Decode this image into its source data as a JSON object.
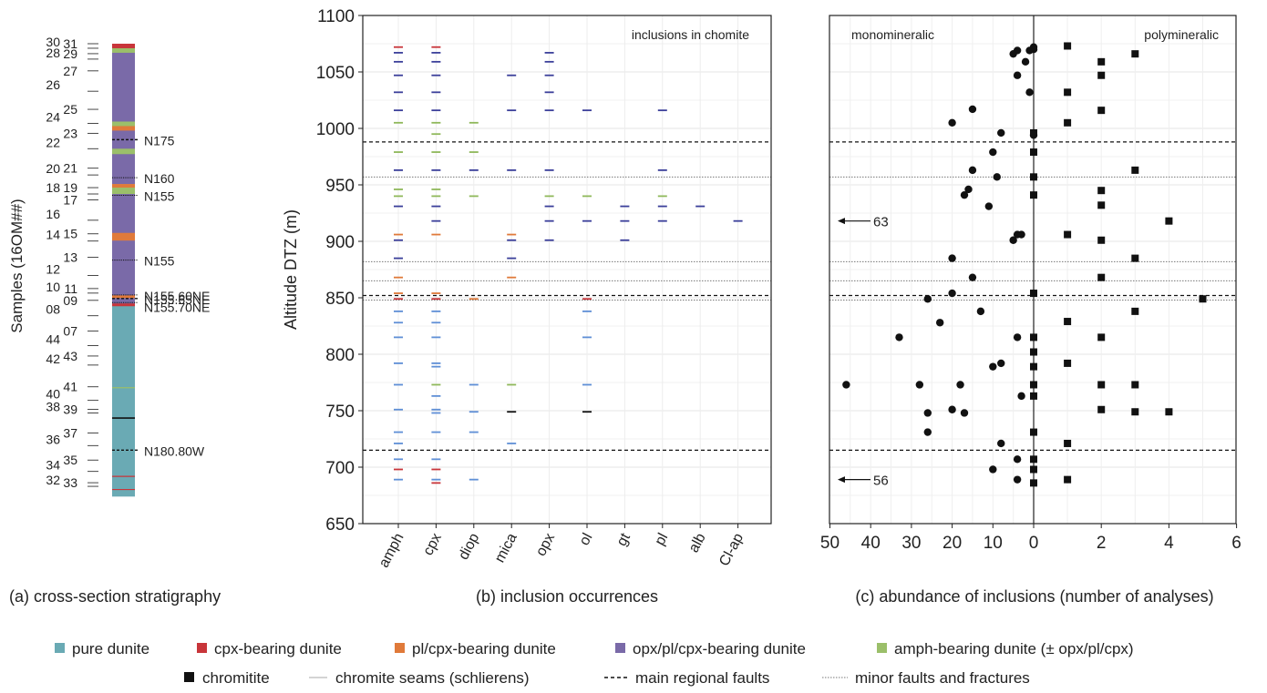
{
  "panels": {
    "a": {
      "caption": "(a) cross-section stratigraphy",
      "ylabel": "Samples (16OM##)",
      "sample_labels": [
        "31",
        "30",
        "29",
        "28",
        "27",
        "26",
        "25",
        "24",
        "23",
        "22",
        "21",
        "20",
        "19",
        "18",
        "17",
        "16",
        "15",
        "14",
        "13",
        "12",
        "11",
        "10",
        "09",
        "08",
        "07",
        "44",
        "43",
        "42",
        "41",
        "40",
        "39",
        "38",
        "37",
        "36",
        "35",
        "34",
        "33",
        "32"
      ],
      "fault_labels": [
        "N175",
        "N160",
        "N155",
        "N155",
        "N155.60NE",
        "N155.65NE",
        "N155.70NE",
        "N180.80W"
      ]
    },
    "b": {
      "caption": "(b) inclusion occurrences",
      "title": "inclusions in chomite",
      "ylabel": "Altitude DTZ (m)"
    },
    "c": {
      "caption": "(c) abundance of inclusions (number of analyses)",
      "left_title": "monomineralic",
      "right_title": "polymineralic",
      "arrow_labels": [
        "63",
        "56"
      ]
    }
  },
  "legend": {
    "items": [
      {
        "label": "pure dunite",
        "color": "#6aaab4"
      },
      {
        "label": "cpx-bearing dunite",
        "color": "#c8353a"
      },
      {
        "label": "pl/cpx-bearing dunite",
        "color": "#e07a3a"
      },
      {
        "label": "opx/pl/cpx-bearing dunite",
        "color": "#7a6aa8"
      },
      {
        "label": "amph-bearing dunite (± opx/pl/cpx)",
        "color": "#9bbf6a"
      },
      {
        "label": "chromitite",
        "color": "#111111"
      },
      {
        "label": "chromite seams (schlierens)",
        "color": "#aaaaaa"
      },
      {
        "label": "main regional faults",
        "color": "#111111"
      },
      {
        "label": "minor faults and fractures",
        "color": "#777777"
      }
    ]
  },
  "chart_data": [
    {
      "type": "scatter",
      "panel": "b",
      "title": "inclusions in chomite",
      "xlabel": "",
      "ylabel": "Altitude DTZ (m)",
      "categories": [
        "amph",
        "cpx",
        "diop",
        "mica",
        "opx",
        "ol",
        "gt",
        "pl",
        "alb",
        "Cl-ap"
      ],
      "ylim": [
        650,
        1100
      ],
      "yticks": [
        650,
        700,
        750,
        800,
        850,
        900,
        950,
        1000,
        1050,
        1100
      ],
      "main_faults": [
        988,
        715,
        852
      ],
      "minor_faults": [
        957,
        882,
        865,
        848
      ],
      "occurrences": [
        {
          "cat": "amph",
          "y": 1072,
          "c": "cpx"
        },
        {
          "cat": "amph",
          "y": 1067,
          "c": "opx"
        },
        {
          "cat": "amph",
          "y": 1059,
          "c": "opx"
        },
        {
          "cat": "amph",
          "y": 1047,
          "c": "opx"
        },
        {
          "cat": "amph",
          "y": 1032,
          "c": "opx"
        },
        {
          "cat": "amph",
          "y": 1016,
          "c": "opx"
        },
        {
          "cat": "amph",
          "y": 1005,
          "c": "amph"
        },
        {
          "cat": "amph",
          "y": 979,
          "c": "amph"
        },
        {
          "cat": "amph",
          "y": 963,
          "c": "opx"
        },
        {
          "cat": "amph",
          "y": 946,
          "c": "amph"
        },
        {
          "cat": "amph",
          "y": 940,
          "c": "amph"
        },
        {
          "cat": "amph",
          "y": 931,
          "c": "opx"
        },
        {
          "cat": "amph",
          "y": 906,
          "c": "pl"
        },
        {
          "cat": "amph",
          "y": 901,
          "c": "opx"
        },
        {
          "cat": "amph",
          "y": 885,
          "c": "opx"
        },
        {
          "cat": "amph",
          "y": 868,
          "c": "pl"
        },
        {
          "cat": "amph",
          "y": 854,
          "c": "pl"
        },
        {
          "cat": "amph",
          "y": 849,
          "c": "cpx"
        },
        {
          "cat": "amph",
          "y": 838,
          "c": "pure"
        },
        {
          "cat": "amph",
          "y": 828,
          "c": "pure"
        },
        {
          "cat": "amph",
          "y": 815,
          "c": "pure"
        },
        {
          "cat": "amph",
          "y": 792,
          "c": "pure"
        },
        {
          "cat": "amph",
          "y": 773,
          "c": "pure"
        },
        {
          "cat": "amph",
          "y": 751,
          "c": "pure"
        },
        {
          "cat": "amph",
          "y": 731,
          "c": "pure"
        },
        {
          "cat": "amph",
          "y": 721,
          "c": "pure"
        },
        {
          "cat": "amph",
          "y": 707,
          "c": "pure"
        },
        {
          "cat": "amph",
          "y": 698,
          "c": "cpx"
        },
        {
          "cat": "amph",
          "y": 689,
          "c": "pure"
        },
        {
          "cat": "cpx",
          "y": 1072,
          "c": "cpx"
        },
        {
          "cat": "cpx",
          "y": 1067,
          "c": "opx"
        },
        {
          "cat": "cpx",
          "y": 1059,
          "c": "opx"
        },
        {
          "cat": "cpx",
          "y": 1047,
          "c": "opx"
        },
        {
          "cat": "cpx",
          "y": 1032,
          "c": "opx"
        },
        {
          "cat": "cpx",
          "y": 1016,
          "c": "opx"
        },
        {
          "cat": "cpx",
          "y": 1005,
          "c": "amph"
        },
        {
          "cat": "cpx",
          "y": 995,
          "c": "amph"
        },
        {
          "cat": "cpx",
          "y": 979,
          "c": "amph"
        },
        {
          "cat": "cpx",
          "y": 963,
          "c": "opx"
        },
        {
          "cat": "cpx",
          "y": 946,
          "c": "amph"
        },
        {
          "cat": "cpx",
          "y": 940,
          "c": "amph"
        },
        {
          "cat": "cpx",
          "y": 931,
          "c": "opx"
        },
        {
          "cat": "cpx",
          "y": 918,
          "c": "opx"
        },
        {
          "cat": "cpx",
          "y": 906,
          "c": "pl"
        },
        {
          "cat": "cpx",
          "y": 854,
          "c": "pl"
        },
        {
          "cat": "cpx",
          "y": 849,
          "c": "cpx"
        },
        {
          "cat": "cpx",
          "y": 838,
          "c": "pure"
        },
        {
          "cat": "cpx",
          "y": 828,
          "c": "pure"
        },
        {
          "cat": "cpx",
          "y": 815,
          "c": "pure"
        },
        {
          "cat": "cpx",
          "y": 792,
          "c": "pure"
        },
        {
          "cat": "cpx",
          "y": 789,
          "c": "pure"
        },
        {
          "cat": "cpx",
          "y": 773,
          "c": "amph"
        },
        {
          "cat": "cpx",
          "y": 763,
          "c": "pure"
        },
        {
          "cat": "cpx",
          "y": 751,
          "c": "pure"
        },
        {
          "cat": "cpx",
          "y": 748,
          "c": "pure"
        },
        {
          "cat": "cpx",
          "y": 731,
          "c": "pure"
        },
        {
          "cat": "cpx",
          "y": 707,
          "c": "pure"
        },
        {
          "cat": "cpx",
          "y": 698,
          "c": "cpx"
        },
        {
          "cat": "cpx",
          "y": 689,
          "c": "pure"
        },
        {
          "cat": "cpx",
          "y": 686,
          "c": "cpx"
        },
        {
          "cat": "diop",
          "y": 1005,
          "c": "amph"
        },
        {
          "cat": "diop",
          "y": 979,
          "c": "amph"
        },
        {
          "cat": "diop",
          "y": 963,
          "c": "opx"
        },
        {
          "cat": "diop",
          "y": 940,
          "c": "amph"
        },
        {
          "cat": "diop",
          "y": 849,
          "c": "pl"
        },
        {
          "cat": "diop",
          "y": 773,
          "c": "pure"
        },
        {
          "cat": "diop",
          "y": 749,
          "c": "pure"
        },
        {
          "cat": "diop",
          "y": 731,
          "c": "pure"
        },
        {
          "cat": "diop",
          "y": 689,
          "c": "pure"
        },
        {
          "cat": "mica",
          "y": 1047,
          "c": "opx"
        },
        {
          "cat": "mica",
          "y": 1016,
          "c": "opx"
        },
        {
          "cat": "mica",
          "y": 963,
          "c": "opx"
        },
        {
          "cat": "mica",
          "y": 906,
          "c": "pl"
        },
        {
          "cat": "mica",
          "y": 901,
          "c": "opx"
        },
        {
          "cat": "mica",
          "y": 885,
          "c": "opx"
        },
        {
          "cat": "mica",
          "y": 868,
          "c": "pl"
        },
        {
          "cat": "mica",
          "y": 773,
          "c": "amph"
        },
        {
          "cat": "mica",
          "y": 749,
          "c": "chr"
        },
        {
          "cat": "mica",
          "y": 721,
          "c": "pure"
        },
        {
          "cat": "opx",
          "y": 1067,
          "c": "opx"
        },
        {
          "cat": "opx",
          "y": 1059,
          "c": "opx"
        },
        {
          "cat": "opx",
          "y": 1047,
          "c": "opx"
        },
        {
          "cat": "opx",
          "y": 1032,
          "c": "opx"
        },
        {
          "cat": "opx",
          "y": 1016,
          "c": "opx"
        },
        {
          "cat": "opx",
          "y": 963,
          "c": "opx"
        },
        {
          "cat": "opx",
          "y": 940,
          "c": "amph"
        },
        {
          "cat": "opx",
          "y": 931,
          "c": "opx"
        },
        {
          "cat": "opx",
          "y": 918,
          "c": "opx"
        },
        {
          "cat": "opx",
          "y": 901,
          "c": "opx"
        },
        {
          "cat": "ol",
          "y": 1016,
          "c": "opx"
        },
        {
          "cat": "ol",
          "y": 940,
          "c": "amph"
        },
        {
          "cat": "ol",
          "y": 918,
          "c": "opx"
        },
        {
          "cat": "ol",
          "y": 849,
          "c": "cpx"
        },
        {
          "cat": "ol",
          "y": 838,
          "c": "pure"
        },
        {
          "cat": "ol",
          "y": 815,
          "c": "pure"
        },
        {
          "cat": "ol",
          "y": 773,
          "c": "pure"
        },
        {
          "cat": "ol",
          "y": 749,
          "c": "chr"
        },
        {
          "cat": "gt",
          "y": 931,
          "c": "opx"
        },
        {
          "cat": "gt",
          "y": 918,
          "c": "opx"
        },
        {
          "cat": "gt",
          "y": 901,
          "c": "opx"
        },
        {
          "cat": "pl",
          "y": 1016,
          "c": "opx"
        },
        {
          "cat": "pl",
          "y": 963,
          "c": "opx"
        },
        {
          "cat": "pl",
          "y": 940,
          "c": "amph"
        },
        {
          "cat": "pl",
          "y": 931,
          "c": "opx"
        },
        {
          "cat": "pl",
          "y": 918,
          "c": "opx"
        },
        {
          "cat": "alb",
          "y": 931,
          "c": "opx"
        },
        {
          "cat": "Cl-ap",
          "y": 918,
          "c": "opx"
        }
      ]
    },
    {
      "type": "scatter",
      "panel": "c",
      "xlabel": "abundance of inclusions (number of analyses)",
      "ylabel": "",
      "ylim": [
        650,
        1100
      ],
      "left_xticks": [
        50,
        40,
        30,
        20,
        10,
        0
      ],
      "right_xticks": [
        0,
        2,
        4,
        6
      ],
      "series": [
        {
          "name": "monomineralic",
          "marker": "circle",
          "points": [
            [
              0,
              1072
            ],
            [
              0,
              1070
            ],
            [
              1,
              1069
            ],
            [
              4,
              1069
            ],
            [
              5,
              1066
            ],
            [
              2,
              1059
            ],
            [
              4,
              1047
            ],
            [
              1,
              1032
            ],
            [
              15,
              1017
            ],
            [
              20,
              1005
            ],
            [
              8,
              996
            ],
            [
              0,
              994
            ],
            [
              10,
              979
            ],
            [
              15,
              963
            ],
            [
              9,
              957
            ],
            [
              16,
              946
            ],
            [
              17,
              941
            ],
            [
              11,
              931
            ],
            [
              3,
              906
            ],
            [
              4,
              906
            ],
            [
              5,
              901
            ],
            [
              20,
              885
            ],
            [
              15,
              868
            ],
            [
              20,
              854
            ],
            [
              26,
              849
            ],
            [
              13,
              838
            ],
            [
              23,
              828
            ],
            [
              33,
              815
            ],
            [
              4,
              815
            ],
            [
              8,
              792
            ],
            [
              10,
              789
            ],
            [
              46,
              773
            ],
            [
              28,
              773
            ],
            [
              18,
              773
            ],
            [
              3,
              763
            ],
            [
              20,
              751
            ],
            [
              17,
              748
            ],
            [
              26,
              748
            ],
            [
              26,
              731
            ],
            [
              8,
              721
            ],
            [
              4,
              707
            ],
            [
              10,
              698
            ],
            [
              4,
              689
            ]
          ]
        },
        {
          "name": "polymineralic",
          "marker": "square",
          "points": [
            [
              1,
              1073
            ],
            [
              3,
              1066
            ],
            [
              2,
              1059
            ],
            [
              2,
              1047
            ],
            [
              1,
              1032
            ],
            [
              2,
              1016
            ],
            [
              1,
              1005
            ],
            [
              0,
              996
            ],
            [
              0,
              979
            ],
            [
              3,
              963
            ],
            [
              0,
              957
            ],
            [
              2,
              945
            ],
            [
              0,
              941
            ],
            [
              2,
              932
            ],
            [
              4,
              918
            ],
            [
              1,
              906
            ],
            [
              2,
              901
            ],
            [
              3,
              885
            ],
            [
              2,
              868
            ],
            [
              0,
              854
            ],
            [
              5,
              849
            ],
            [
              3,
              838
            ],
            [
              1,
              829
            ],
            [
              2,
              815
            ],
            [
              0,
              815
            ],
            [
              0,
              802
            ],
            [
              0,
              789
            ],
            [
              1,
              792
            ],
            [
              0,
              773
            ],
            [
              2,
              773
            ],
            [
              3,
              773
            ],
            [
              0,
              763
            ],
            [
              2,
              751
            ],
            [
              3,
              749
            ],
            [
              4,
              749
            ],
            [
              0,
              731
            ],
            [
              1,
              721
            ],
            [
              0,
              707
            ],
            [
              0,
              698
            ],
            [
              1,
              689
            ],
            [
              0,
              686
            ]
          ]
        }
      ],
      "main_faults": [
        988,
        715,
        852
      ],
      "minor_faults": [
        957,
        882,
        865,
        848
      ],
      "annotations": [
        {
          "text": "63",
          "y": 918,
          "side": "left"
        },
        {
          "text": "56",
          "y": 689,
          "side": "left"
        }
      ]
    }
  ]
}
